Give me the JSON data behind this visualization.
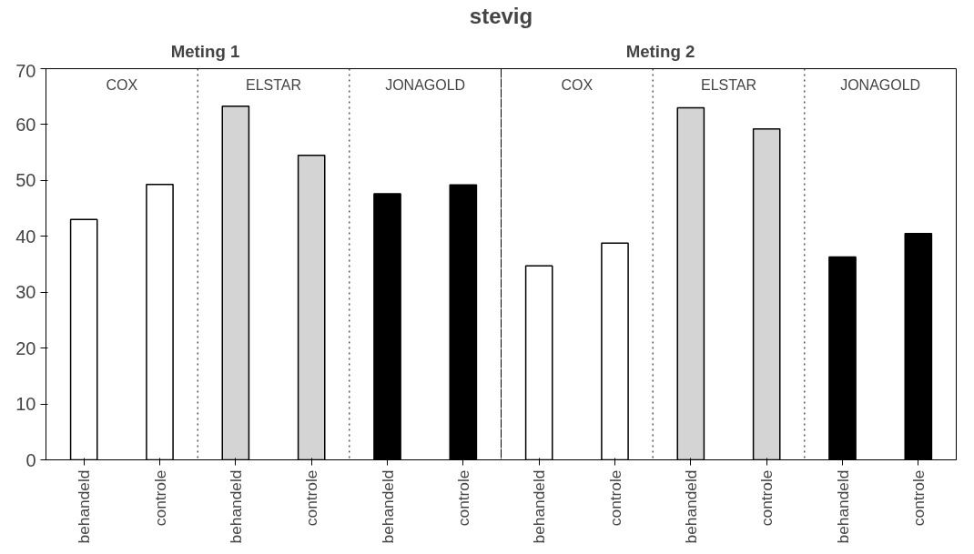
{
  "chart_data": {
    "type": "bar",
    "title": "stevig",
    "categories": [
      "behandeld",
      "controle",
      "behandeld",
      "controle",
      "behandeld",
      "controle",
      "behandeld",
      "controle",
      "behandeld",
      "controle",
      "behandeld",
      "controle"
    ],
    "values": [
      43,
      49.3,
      63.3,
      54.5,
      47.6,
      49.2,
      34.7,
      38.8,
      63,
      59.2,
      36.3,
      40.5
    ],
    "colors": [
      "#ffffff",
      "#ffffff",
      "#d4d4d4",
      "#d4d4d4",
      "#000000",
      "#000000",
      "#ffffff",
      "#ffffff",
      "#d4d4d4",
      "#d4d4d4",
      "#000000",
      "#000000"
    ],
    "ylim": [
      0,
      70
    ],
    "yticks": [
      0,
      10,
      20,
      30,
      40,
      50,
      60,
      70
    ],
    "grid": false,
    "annotations": [
      "Meting 1",
      "Meting 2",
      "COX",
      "ELSTAR",
      "JONAGOLD",
      "COX",
      "ELSTAR",
      "JONAGOLD"
    ]
  }
}
